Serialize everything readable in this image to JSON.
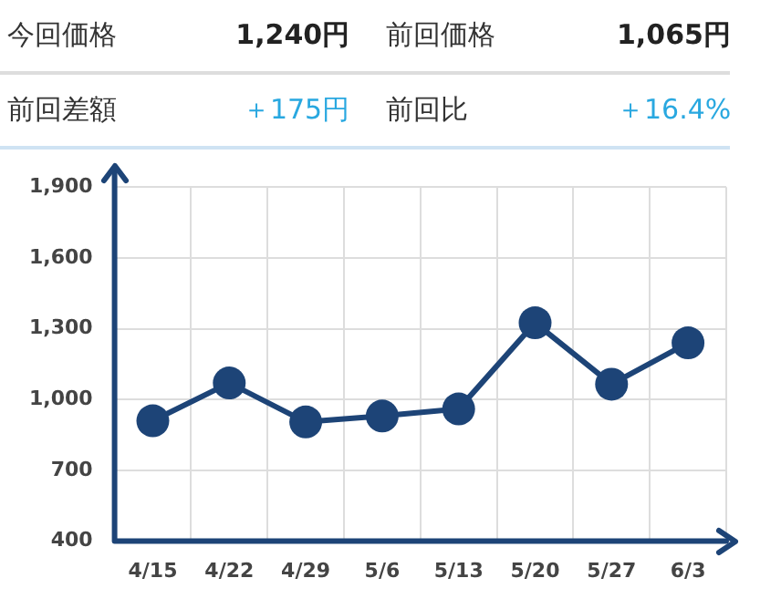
{
  "chart_data": {
    "type": "line",
    "annotations": [
      "今回価格",
      "1,240円",
      "前回価格",
      "1,065円",
      "前回差額",
      "＋175円",
      "前回比",
      "＋16.4%"
    ],
    "categories": [
      "4/15",
      "4/22",
      "4/29",
      "5/6",
      "5/13",
      "5/20",
      "5/27",
      "6/3"
    ],
    "series": [
      {
        "color": "#1d4477",
        "values": [
          910,
          1070,
          905,
          930,
          960,
          1325,
          1065,
          1240
        ]
      }
    ],
    "ylim": [
      400,
      1900
    ],
    "yticks": [
      {
        "value": 400,
        "label": "400"
      },
      {
        "value": 700,
        "label": "700"
      },
      {
        "value": 1000,
        "label": "1,000"
      },
      {
        "value": 1300,
        "label": "1,300"
      },
      {
        "value": 1600,
        "label": "1,600"
      },
      {
        "value": 1900,
        "label": "1,900"
      }
    ],
    "grid": true,
    "marker": "circle",
    "line_style": "solid"
  }
}
